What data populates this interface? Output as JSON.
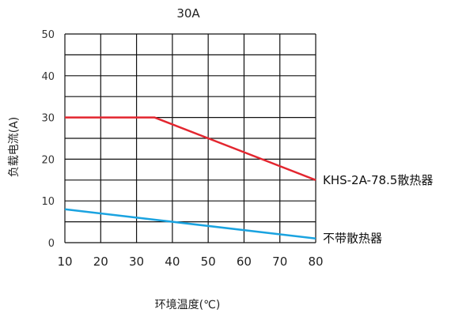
{
  "chart_data": {
    "type": "line",
    "title": "30A",
    "xlabel": "环境温度(℃)",
    "ylabel": "负载电流(A)",
    "xlim": [
      10,
      80
    ],
    "ylim": [
      0,
      50
    ],
    "xticks": [
      10,
      20,
      30,
      40,
      50,
      60,
      70,
      80
    ],
    "yticks": [
      0,
      10,
      20,
      30,
      40,
      50
    ],
    "grid": true,
    "legend": "labels at line ends (right)",
    "series": [
      {
        "name": "KHS-2A-78.5散热器",
        "color": "#e3262f",
        "x": [
          10,
          35,
          80
        ],
        "y": [
          30,
          30,
          15
        ]
      },
      {
        "name": "不带散热器",
        "color": "#1aa3e0",
        "x": [
          10,
          80
        ],
        "y": [
          8,
          1
        ]
      }
    ]
  }
}
